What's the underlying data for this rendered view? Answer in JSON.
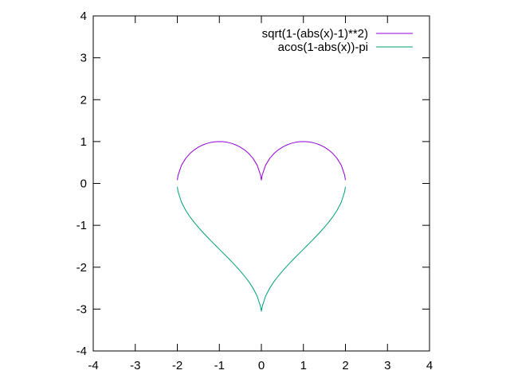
{
  "chart_data": {
    "type": "line",
    "title": "",
    "xlabel": "",
    "ylabel": "",
    "xlim": [
      -4,
      4
    ],
    "ylim": [
      -4,
      4
    ],
    "x_ticks": [
      -4,
      -3,
      -2,
      -1,
      0,
      1,
      2,
      3,
      4
    ],
    "y_ticks": [
      -4,
      -3,
      -2,
      -1,
      0,
      1,
      2,
      3,
      4
    ],
    "x_tick_labels": [
      "-4",
      "-3",
      "-2",
      "-1",
      "0",
      "1",
      "2",
      "3",
      "4"
    ],
    "y_tick_labels": [
      "-4",
      "-3",
      "-2",
      "-1",
      "0",
      "1",
      "2",
      "3",
      "4"
    ],
    "grid": false,
    "legend_position": "top-right",
    "series": [
      {
        "name": "sqrt(1-(abs(x)-1)**2)",
        "color": "#9400d3",
        "x": [
          -2.0,
          -1.98,
          -1.9,
          -1.8,
          -1.7,
          -1.6,
          -1.5,
          -1.4,
          -1.3,
          -1.2,
          -1.1,
          -1.0,
          -0.9,
          -0.8,
          -0.7,
          -0.6,
          -0.5,
          -0.4,
          -0.3,
          -0.2,
          -0.1,
          -0.02,
          0.0,
          0.02,
          0.1,
          0.2,
          0.3,
          0.4,
          0.5,
          0.6,
          0.7,
          0.8,
          0.9,
          1.0,
          1.1,
          1.2,
          1.3,
          1.4,
          1.5,
          1.6,
          1.7,
          1.8,
          1.9,
          1.98,
          2.0
        ],
        "y": [
          0.08,
          0.2,
          0.436,
          0.6,
          0.714,
          0.8,
          0.866,
          0.917,
          0.954,
          0.98,
          0.995,
          1.0,
          0.995,
          0.98,
          0.954,
          0.917,
          0.866,
          0.8,
          0.714,
          0.6,
          0.436,
          0.2,
          0.08,
          0.2,
          0.436,
          0.6,
          0.714,
          0.8,
          0.866,
          0.917,
          0.954,
          0.98,
          0.995,
          1.0,
          0.995,
          0.98,
          0.954,
          0.917,
          0.866,
          0.8,
          0.714,
          0.6,
          0.436,
          0.2,
          0.08
        ]
      },
      {
        "name": "acos(1-abs(x))-pi",
        "color": "#009e73",
        "x": [
          -2.0,
          -1.98,
          -1.9,
          -1.8,
          -1.7,
          -1.6,
          -1.5,
          -1.4,
          -1.3,
          -1.2,
          -1.1,
          -1.0,
          -0.9,
          -0.8,
          -0.7,
          -0.6,
          -0.5,
          -0.4,
          -0.3,
          -0.2,
          -0.1,
          -0.02,
          0.0,
          0.02,
          0.1,
          0.2,
          0.3,
          0.4,
          0.5,
          0.6,
          0.7,
          0.8,
          0.9,
          1.0,
          1.1,
          1.2,
          1.3,
          1.4,
          1.5,
          1.6,
          1.7,
          1.8,
          1.9,
          1.98,
          2.0
        ],
        "y": [
          -0.08,
          -0.2,
          -0.451,
          -0.644,
          -0.795,
          -0.927,
          -1.047,
          -1.159,
          -1.266,
          -1.369,
          -1.471,
          -1.571,
          -1.671,
          -1.772,
          -1.875,
          -1.982,
          -2.094,
          -2.214,
          -2.346,
          -2.498,
          -2.691,
          -2.942,
          -3.05,
          -2.942,
          -2.691,
          -2.498,
          -2.346,
          -2.214,
          -2.094,
          -1.982,
          -1.875,
          -1.772,
          -1.671,
          -1.571,
          -1.471,
          -1.369,
          -1.266,
          -1.159,
          -1.047,
          -0.927,
          -0.795,
          -0.644,
          -0.451,
          -0.2,
          -0.08
        ]
      }
    ]
  }
}
